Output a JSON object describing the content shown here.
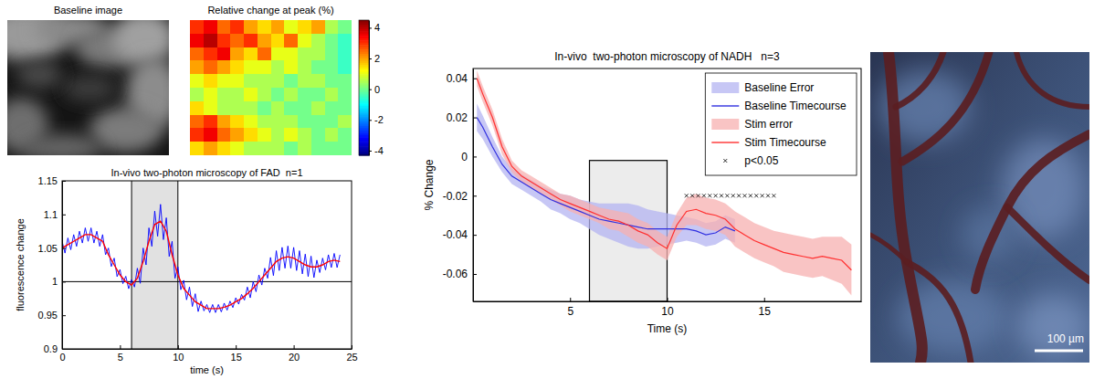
{
  "chart_data": [
    {
      "type": "image",
      "title": "Baseline image"
    },
    {
      "type": "heatmap",
      "title": "Relative change at peak (%)",
      "cells": [
        [
          3,
          3.5,
          2.5,
          3,
          2,
          1.5,
          2,
          1,
          1.5,
          2,
          0.5,
          0
        ],
        [
          3.5,
          4,
          3,
          2.5,
          3,
          2,
          1.5,
          2.5,
          1,
          0.5,
          0,
          -0.5
        ],
        [
          2.5,
          3,
          3.5,
          2,
          1.5,
          2.5,
          1,
          1,
          0.5,
          0.5,
          0,
          -0.5
        ],
        [
          2,
          2.5,
          2,
          1.5,
          1,
          1,
          0.5,
          1,
          0.5,
          0,
          0,
          -0.5
        ],
        [
          1,
          1.5,
          1,
          1,
          0.5,
          0.5,
          0.5,
          0,
          0.5,
          0.5,
          0,
          0
        ],
        [
          0.5,
          1,
          0.5,
          0.5,
          1,
          0.5,
          0,
          0.5,
          0,
          0,
          0.5,
          0
        ],
        [
          1.5,
          1,
          0.5,
          0.5,
          0.5,
          0,
          0.5,
          0,
          0,
          0.5,
          0,
          0
        ],
        [
          2.5,
          3,
          2,
          1.5,
          1,
          0.5,
          0.5,
          0.5,
          0,
          0,
          0,
          0.5
        ],
        [
          3,
          3.5,
          2.5,
          2,
          1.5,
          1,
          0.5,
          1,
          0.5,
          0,
          0.5,
          0
        ],
        [
          1.5,
          2,
          1.5,
          1,
          0.5,
          0.5,
          0.5,
          0,
          0.5,
          0,
          0,
          0
        ]
      ],
      "colorbar": {
        "range": [
          -4.3,
          4.5
        ],
        "ticks": [
          -4,
          -2,
          0,
          2,
          4
        ]
      }
    },
    {
      "type": "line",
      "title": "In-vivo two-photon microscopy of FAD  n=1",
      "x_label": "time (s)",
      "y_label": "fluorescence change",
      "xlim": [
        0,
        25
      ],
      "ylim": [
        0.9,
        1.15
      ],
      "xticks": [
        0,
        5,
        10,
        15,
        20,
        25
      ],
      "yticks": [
        0.9,
        0.95,
        1,
        1.05,
        1.1,
        1.15
      ],
      "shaded_region": [
        6,
        10
      ],
      "reference_line": 1,
      "series": [
        {
          "color": "#0000ff",
          "x": [
            0,
            0.25,
            0.5,
            0.75,
            1,
            1.25,
            1.5,
            1.75,
            2,
            2.25,
            2.5,
            2.75,
            3,
            3.25,
            3.5,
            3.75,
            4,
            4.25,
            4.5,
            4.75,
            5,
            5.25,
            5.5,
            5.75,
            6,
            6.25,
            6.5,
            6.75,
            7,
            7.25,
            7.5,
            7.75,
            8,
            8.25,
            8.5,
            8.75,
            9,
            9.25,
            9.5,
            9.75,
            10,
            10.25,
            10.5,
            10.75,
            11,
            11.25,
            11.5,
            11.75,
            12,
            12.25,
            12.5,
            12.75,
            13,
            13.25,
            13.5,
            13.75,
            14,
            14.25,
            14.5,
            14.75,
            15,
            15.25,
            15.5,
            15.75,
            16,
            16.25,
            16.5,
            16.75,
            17,
            17.25,
            17.5,
            17.75,
            18,
            18.25,
            18.5,
            18.75,
            19,
            19.25,
            19.5,
            19.75,
            20,
            20.25,
            20.5,
            20.75,
            21,
            21.25,
            21.5,
            21.75,
            22,
            22.25,
            22.5,
            22.75,
            23,
            23.25,
            23.5,
            23.75,
            24
          ],
          "values": [
            1.06,
            1.0425,
            1.065,
            1.0475,
            1.07,
            1.0525,
            1.075,
            1.0575,
            1.08,
            1.06,
            1.08,
            1.0575,
            1.075,
            1.0525,
            1.07,
            1.04,
            1.05,
            1.0225,
            1.035,
            1.0075,
            1.018,
            0.997,
            1.008,
            0.9895,
            1.003,
            0.992,
            1.02,
            0.9975,
            1.05,
            1.025,
            1.08,
            1.0525,
            1.105,
            1.0675,
            1.115,
            1.0625,
            1.095,
            1.0375,
            1.06,
            1.005,
            1.022,
            0.988,
            1.002,
            0.973,
            0.992,
            0.963,
            0.982,
            0.9555,
            0.971,
            0.9565,
            0.966,
            0.954,
            0.966,
            0.954,
            0.966,
            0.955,
            0.968,
            0.9575,
            0.971,
            0.9615,
            0.976,
            0.9665,
            0.981,
            0.9725,
            0.992,
            0.976,
            1,
            0.985,
            1.01,
            0.995,
            1.02,
            1.005,
            1.036,
            1.009,
            1.046,
            1.0165,
            1.051,
            1.02,
            1.053,
            1.02,
            1.051,
            1.0165,
            1.046,
            1.0115,
            1.041,
            1.0075,
            1.038,
            1.006,
            1.032,
            1.0135,
            1.035,
            1.0175,
            1.04,
            1.021,
            1.042,
            1.021,
            1.04
          ]
        },
        {
          "color": "#ff0000",
          "x": [
            0,
            0.5,
            1,
            1.5,
            2,
            2.5,
            3,
            3.5,
            4,
            4.5,
            5,
            5.5,
            6,
            6.5,
            7,
            7.5,
            8,
            8.5,
            9,
            9.5,
            10,
            10.5,
            11,
            11.5,
            12,
            12.5,
            13,
            13.5,
            14,
            14.5,
            15,
            15.5,
            16,
            16.5,
            17,
            17.5,
            18,
            18.5,
            19,
            19.5,
            20,
            20.5,
            21,
            21.5,
            22,
            22.5,
            23,
            23.5,
            24
          ],
          "values": [
            1.05,
            1.055,
            1.06,
            1.065,
            1.07,
            1.07,
            1.065,
            1.06,
            1.04,
            1.025,
            1.01,
            1,
            0.995,
            1.005,
            1.03,
            1.06,
            1.085,
            1.09,
            1.075,
            1.04,
            1.01,
            0.99,
            0.98,
            0.97,
            0.965,
            0.96,
            0.96,
            0.96,
            0.962,
            0.965,
            0.97,
            0.975,
            0.982,
            0.99,
            1,
            1.01,
            1.02,
            1.03,
            1.035,
            1.037,
            1.035,
            1.03,
            1.025,
            1.022,
            1.022,
            1.025,
            1.03,
            1.032,
            1.03
          ]
        }
      ]
    },
    {
      "type": "line",
      "title": "In-vivo  two-photon microscopy of NADH   n=3",
      "x_label": "Time (s)",
      "y_label": "% Change",
      "xlim": [
        0,
        20
      ],
      "ylim": [
        -0.074,
        0.045
      ],
      "xticks": [
        5,
        10,
        15
      ],
      "yticks": [
        0.04,
        0.02,
        0,
        -0.02,
        -0.04,
        -0.06
      ],
      "legend": "upper right",
      "stim_box": {
        "x": [
          6,
          10
        ],
        "y": [
          -0.074,
          -0.002
        ]
      },
      "series": [
        {
          "name": "Baseline Timecourse",
          "color": "#3030e0",
          "error_name": "Baseline Error",
          "error_color": "#b4b4f2",
          "x": [
            0.2,
            0.5,
            1,
            1.5,
            2,
            2.5,
            3,
            3.5,
            4,
            4.5,
            5,
            5.5,
            6,
            6.5,
            7,
            7.5,
            8,
            8.5,
            9,
            9.5,
            10,
            10.5,
            11,
            11.5,
            12,
            12.5,
            13,
            13.5
          ],
          "values": [
            0.02,
            0.015,
            0.005,
            -0.004,
            -0.01,
            -0.013,
            -0.016,
            -0.019,
            -0.022,
            -0.024,
            -0.026,
            -0.028,
            -0.03,
            -0.032,
            -0.033,
            -0.034,
            -0.035,
            -0.036,
            -0.037,
            -0.037,
            -0.037,
            -0.037,
            -0.037,
            -0.038,
            -0.04,
            -0.039,
            -0.036,
            -0.038
          ],
          "error": [
            0.007,
            0.006,
            0.005,
            0.004,
            0.004,
            0.004,
            0.004,
            0.004,
            0.005,
            0.005,
            0.006,
            0.006,
            0.007,
            0.008,
            0.009,
            0.01,
            0.011,
            0.011,
            0.01,
            0.009,
            0.008,
            0.007,
            0.006,
            0.006,
            0.006,
            0.006,
            0.006,
            0.006
          ]
        },
        {
          "name": "Stim Timecourse",
          "color": "#ff3030",
          "error_name": "Stim error",
          "error_color": "#f7b0b0",
          "x": [
            0.2,
            0.5,
            1,
            1.5,
            2,
            2.5,
            3,
            3.5,
            4,
            4.5,
            5,
            5.5,
            6,
            6.5,
            7,
            7.5,
            8,
            8.5,
            9,
            9.5,
            10,
            10.5,
            11,
            11.5,
            12,
            12.5,
            13,
            13.5,
            14,
            14.5,
            15,
            15.5,
            16,
            16.5,
            17,
            17.5,
            18,
            18.5,
            19,
            19.5
          ],
          "values": [
            0.04,
            0.032,
            0.02,
            0.005,
            -0.005,
            -0.01,
            -0.013,
            -0.016,
            -0.019,
            -0.022,
            -0.024,
            -0.026,
            -0.028,
            -0.03,
            -0.032,
            -0.033,
            -0.035,
            -0.038,
            -0.04,
            -0.044,
            -0.047,
            -0.035,
            -0.028,
            -0.027,
            -0.029,
            -0.03,
            -0.032,
            -0.037,
            -0.04,
            -0.043,
            -0.045,
            -0.047,
            -0.049,
            -0.05,
            -0.051,
            -0.052,
            -0.051,
            -0.052,
            -0.053,
            -0.058
          ],
          "error": [
            0.004,
            0.004,
            0.004,
            0.004,
            0.003,
            0.003,
            0.003,
            0.003,
            0.003,
            0.003,
            0.004,
            0.004,
            0.004,
            0.004,
            0.005,
            0.005,
            0.006,
            0.006,
            0.006,
            0.006,
            0.006,
            0.006,
            0.007,
            0.008,
            0.008,
            0.008,
            0.008,
            0.009,
            0.009,
            0.009,
            0.009,
            0.009,
            0.01,
            0.01,
            0.01,
            0.01,
            0.01,
            0.011,
            0.012,
            0.013
          ]
        },
        {
          "name": "p<0.05",
          "type": "scatter",
          "marker": "x",
          "color": "#000000",
          "x": [
            11,
            11.3,
            11.6,
            11.9,
            12.2,
            12.5,
            12.8,
            13.1,
            13.4,
            13.7,
            14,
            14.3,
            14.6,
            14.9,
            15.2,
            15.5
          ],
          "values": [
            -0.02,
            -0.02,
            -0.02,
            -0.02,
            -0.02,
            -0.02,
            -0.02,
            -0.02,
            -0.02,
            -0.02,
            -0.02,
            -0.02,
            -0.02,
            -0.02,
            -0.02,
            -0.02
          ]
        }
      ]
    },
    {
      "type": "image",
      "scale_bar": "100 µm"
    }
  ]
}
